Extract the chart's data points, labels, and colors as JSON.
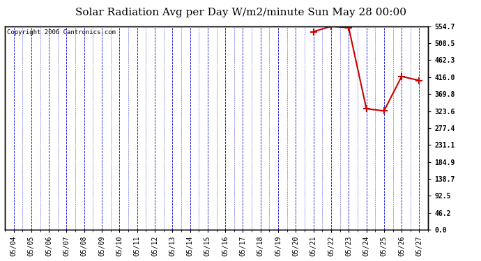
{
  "title": "Solar Radiation Avg per Day W/m2/minute Sun May 28 00:00",
  "copyright": "Copyright 2006 Cantronics.com",
  "background_color": "#ffffff",
  "plot_background": "#ffffff",
  "grid_color": "#0000cc",
  "line_color": "#cc0000",
  "marker_color": "#cc0000",
  "x_labels": [
    "05/04",
    "05/05",
    "05/06",
    "05/07",
    "05/08",
    "05/09",
    "05/10",
    "05/11",
    "05/12",
    "05/13",
    "05/14",
    "05/15",
    "05/16",
    "05/17",
    "05/18",
    "05/19",
    "05/20",
    "05/21",
    "05/22",
    "05/23",
    "05/24",
    "05/25",
    "05/26",
    "05/27"
  ],
  "y_ticks": [
    0.0,
    46.2,
    92.5,
    138.7,
    184.9,
    231.1,
    277.4,
    323.6,
    369.8,
    416.0,
    462.3,
    508.5,
    554.7
  ],
  "data_x_indices": [
    17,
    18,
    19,
    20,
    21,
    22,
    23
  ],
  "data_y": [
    540.0,
    554.7,
    551.0,
    330.0,
    324.0,
    418.0,
    407.0
  ],
  "ylim_min": 0.0,
  "ylim_max": 554.7,
  "title_fontsize": 11,
  "tick_fontsize": 7,
  "copyright_fontsize": 6.5
}
